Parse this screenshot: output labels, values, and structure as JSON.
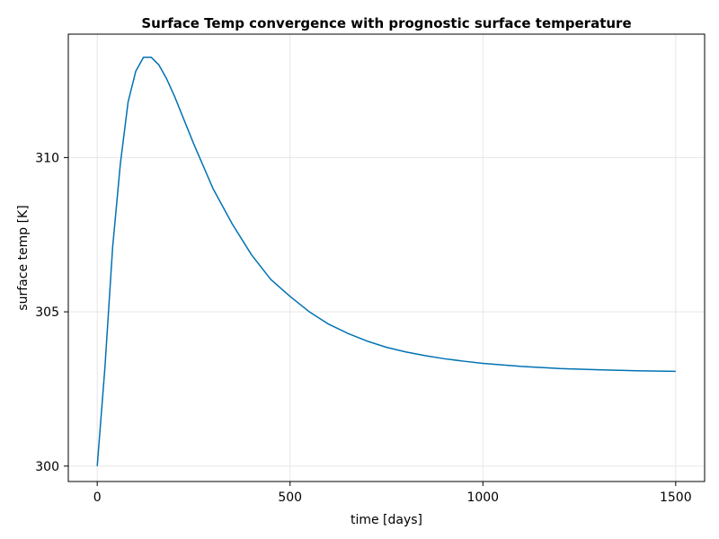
{
  "chart_data": {
    "type": "line",
    "title": "Surface Temp convergence with prognostic surface temperature",
    "xlabel": "time [days]",
    "ylabel": "surface temp [K]",
    "xlim": [
      -75,
      1575
    ],
    "ylim": [
      299.5,
      314.0
    ],
    "xticks": [
      0,
      500,
      1000,
      1500
    ],
    "yticks": [
      300,
      305,
      310
    ],
    "grid": true,
    "series": [
      {
        "color": "#0072b2",
        "x": [
          0,
          20,
          40,
          60,
          80,
          100,
          120,
          140,
          160,
          180,
          200,
          250,
          300,
          350,
          400,
          450,
          500,
          550,
          600,
          650,
          700,
          750,
          800,
          850,
          900,
          950,
          1000,
          1100,
          1200,
          1300,
          1400,
          1500
        ],
        "y": [
          300.0,
          303.2,
          307.1,
          309.8,
          311.8,
          312.8,
          313.25,
          313.25,
          313.0,
          312.55,
          312.0,
          310.45,
          309.0,
          307.85,
          306.85,
          306.05,
          305.5,
          305.0,
          304.6,
          304.3,
          304.05,
          303.85,
          303.7,
          303.58,
          303.48,
          303.4,
          303.33,
          303.23,
          303.16,
          303.12,
          303.09,
          303.07
        ]
      }
    ]
  }
}
